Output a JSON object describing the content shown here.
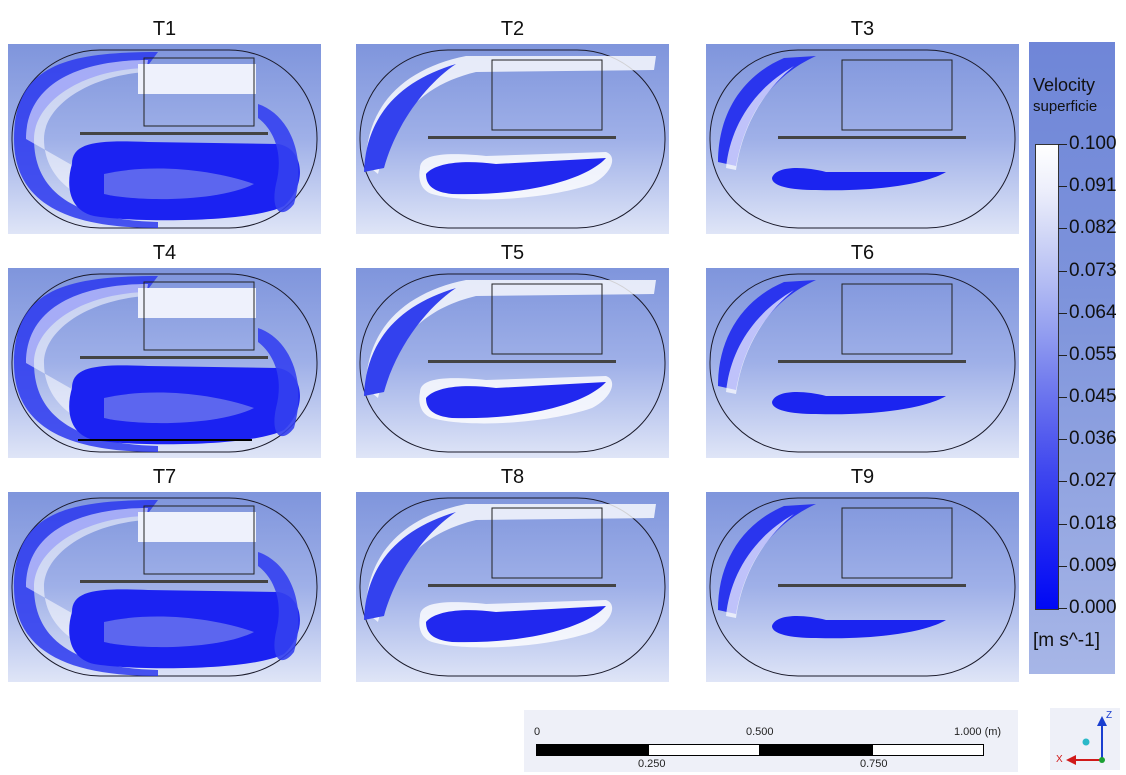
{
  "panels": [
    {
      "label": "T1"
    },
    {
      "label": "T2"
    },
    {
      "label": "T3"
    },
    {
      "label": "T4"
    },
    {
      "label": "T5"
    },
    {
      "label": "T6"
    },
    {
      "label": "T7"
    },
    {
      "label": "T8"
    },
    {
      "label": "T9"
    }
  ],
  "legend": {
    "title": "Velocity",
    "subtitle": "superficie",
    "ticks": [
      "0.100",
      "0.091",
      "0.082",
      "0.073",
      "0.064",
      "0.055",
      "0.045",
      "0.036",
      "0.027",
      "0.018",
      "0.009",
      "0.000"
    ],
    "unit": "[m s^-1]"
  },
  "scale_bar": {
    "top_labels": [
      "0",
      "0.500",
      "1.000 (m)"
    ],
    "bottom_labels": [
      "0.250",
      "0.750"
    ]
  },
  "axis_triad": {
    "labels": [
      "Z",
      "X"
    ],
    "colors": {
      "z": "#1a3fd0",
      "x": "#d01a1a",
      "y": "#1aa033"
    }
  },
  "colors": {
    "background_panel": "#8ea2e4",
    "low_velocity": "#0008f5",
    "high_velocity": "#ffffff"
  }
}
